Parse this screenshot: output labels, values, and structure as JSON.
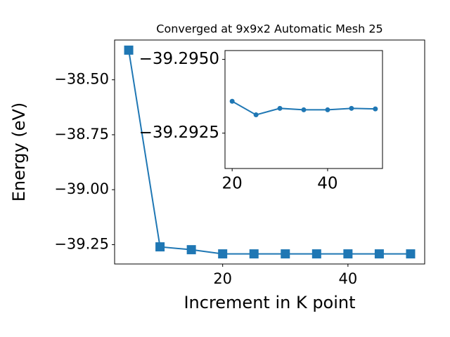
{
  "chart_data": [
    {
      "type": "line",
      "title": "Converged at 9x9x2 Automatic Mesh 25",
      "x_label": "Increment in K point",
      "y_label": "Energy (eV)",
      "x": [
        5,
        10,
        15,
        20,
        25,
        30,
        35,
        40,
        45,
        50
      ],
      "series": [
        {
          "color": "#1f77b4",
          "marker": "square",
          "values": [
            -38.365,
            -39.26,
            -39.273,
            -39.292,
            -39.292,
            -39.292,
            -39.292,
            -39.292,
            -39.292,
            -39.292
          ]
        }
      ],
      "xlim": [
        2.75,
        52.25
      ],
      "xticks": [
        20,
        40
      ],
      "ylim": [
        -39.338,
        -38.319
      ],
      "yticks": [
        {
          "value": -39.25,
          "label": "−39.25"
        },
        {
          "value": -39.0,
          "label": "−39.00"
        },
        {
          "value": -38.75,
          "label": "−38.75"
        },
        {
          "value": -38.5,
          "label": "−38.50"
        }
      ]
    },
    {
      "type": "line",
      "x": [
        20,
        25,
        30,
        35,
        40,
        45,
        50
      ],
      "series": [
        {
          "color": "#1f77b4",
          "marker": "circle",
          "values": [
            -39.29358,
            -39.29312,
            -39.29334,
            -39.29329,
            -39.29329,
            -39.29334,
            -39.29332
          ]
        }
      ],
      "xlim": [
        18.5,
        51.5
      ],
      "xticks": [
        20,
        40
      ],
      "ylim": [
        -39.2913,
        -39.2953
      ],
      "yticks": [
        {
          "value": -39.2925,
          "label": "−39.2925"
        },
        {
          "value": -39.295,
          "label": "−39.2950"
        }
      ]
    }
  ]
}
